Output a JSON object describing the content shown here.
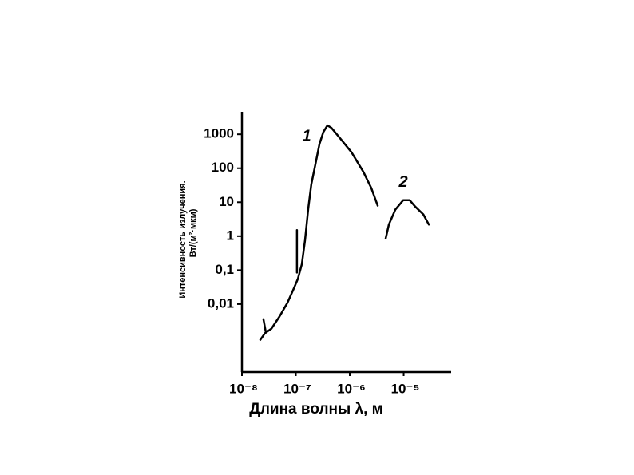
{
  "chart_data": {
    "type": "line",
    "ylabel": [
      "Интенсивность излучения.",
      "Вт/(м²·мкм)"
    ],
    "xlabel": "Длина волны λ, м",
    "xscale": "log",
    "yscale": "log",
    "xlim": [
      1e-08,
      7.6e-05
    ],
    "ylim": [
      0.0001,
      4600
    ],
    "xticks": [
      {
        "value": 1e-08,
        "label": "10⁻⁸"
      },
      {
        "value": 1e-07,
        "label": "10⁻⁷"
      },
      {
        "value": 1e-06,
        "label": "10⁻⁶"
      },
      {
        "value": 1e-05,
        "label": "10⁻⁵"
      }
    ],
    "yticks": [
      1000,
      100,
      10,
      1,
      {
        "value": 0.1,
        "label": "0,1"
      },
      {
        "value": 0.01,
        "label": "0,01"
      }
    ],
    "color": "#000000",
    "series": [
      {
        "name": "1",
        "x": [
          2.5e-08,
          2.78e-08,
          null,
          1.05e-07,
          1.05e-07,
          null,
          2.19e-08,
          2.69e-08,
          3.53e-08,
          4.97e-08,
          6.99e-08,
          9.19e-08,
          1.09e-07,
          1.29e-07,
          1.48e-07,
          1.7e-07,
          1.94e-07,
          2.31e-07,
          2.74e-07,
          3.24e-07,
          3.85e-07,
          4.56e-07,
          6.41e-07,
          1.07e-06,
          1.79e-06,
          2.51e-06,
          3.3e-06
        ],
        "values": [
          0.0036,
          0.00145,
          null,
          1.5,
          0.085,
          null,
          0.00089,
          0.0014,
          0.0019,
          0.0043,
          0.011,
          0.029,
          0.055,
          0.15,
          0.76,
          6.7,
          34,
          134,
          520,
          1170,
          1820,
          1550,
          810,
          300,
          78,
          26,
          7.9
        ]
      },
      {
        "name": "2",
        "x": [
          4.64e-06,
          5.32e-06,
          6.98e-06,
          9.83e-06,
          1.29e-05,
          1.64e-05,
          2.31e-05,
          2.93e-05
        ],
        "values": [
          0.85,
          2.2,
          6.0,
          11.5,
          11.5,
          7.4,
          4.4,
          2.2
        ]
      }
    ]
  }
}
